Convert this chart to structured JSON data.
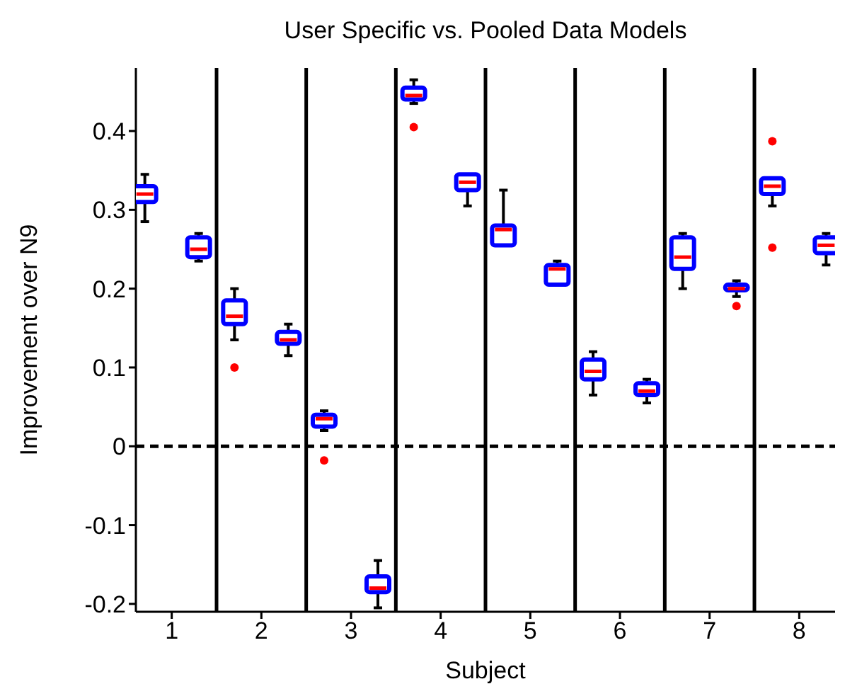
{
  "chart_data": {
    "type": "box",
    "title": "User Specific vs. Pooled Data Models",
    "xlabel": "Subject",
    "ylabel": "Improvement over N9",
    "xlim": [
      0.6,
      8.4
    ],
    "xticks": [
      1,
      2,
      3,
      4,
      5,
      6,
      7,
      8
    ],
    "ylim": [
      -0.21,
      0.48
    ],
    "yticks": [
      {
        "value": -0.2,
        "label": "-0.2"
      },
      {
        "value": -0.1,
        "label": "-0.1"
      },
      0,
      0.1,
      0.2,
      0.3,
      0.4
    ],
    "series": [
      {
        "color": "#0000ff",
        "x": [
          0.7,
          1.7,
          2.7,
          3.7,
          4.7,
          5.7,
          6.7,
          7.7
        ],
        "boxes": [
          {
            "low": 0.285,
            "q1": 0.31,
            "median": 0.32,
            "q3": 0.33,
            "high": 0.345
          },
          {
            "low": 0.135,
            "q1": 0.155,
            "median": 0.165,
            "q3": 0.185,
            "high": 0.2,
            "outliers": [
              0.1
            ]
          },
          {
            "low": 0.02,
            "q1": 0.025,
            "median": 0.035,
            "q3": 0.04,
            "high": 0.045,
            "outliers": [
              -0.018
            ]
          },
          {
            "low": 0.435,
            "q1": 0.44,
            "median": 0.445,
            "q3": 0.455,
            "high": 0.465,
            "outliers": [
              0.405
            ]
          },
          {
            "low": 0.255,
            "q1": 0.255,
            "median": 0.275,
            "q3": 0.28,
            "high": 0.325
          },
          {
            "low": 0.065,
            "q1": 0.085,
            "median": 0.095,
            "q3": 0.11,
            "high": 0.12
          },
          {
            "low": 0.2,
            "q1": 0.225,
            "median": 0.24,
            "q3": 0.265,
            "high": 0.27
          },
          {
            "low": 0.305,
            "q1": 0.32,
            "median": 0.33,
            "q3": 0.34,
            "high": 0.34,
            "outliers": [
              0.387,
              0.252
            ]
          }
        ]
      },
      {
        "color": "#0000ff",
        "x": [
          1.3,
          2.3,
          3.3,
          4.3,
          5.3,
          6.3,
          7.3,
          8.3
        ],
        "boxes": [
          {
            "low": 0.235,
            "q1": 0.24,
            "median": 0.25,
            "q3": 0.265,
            "high": 0.27
          },
          {
            "low": 0.115,
            "q1": 0.13,
            "median": 0.135,
            "q3": 0.145,
            "high": 0.155
          },
          {
            "low": -0.205,
            "q1": -0.185,
            "median": -0.18,
            "q3": -0.165,
            "high": -0.145
          },
          {
            "low": 0.305,
            "q1": 0.325,
            "median": 0.335,
            "q3": 0.345,
            "high": 0.345
          },
          {
            "low": 0.205,
            "q1": 0.205,
            "median": 0.225,
            "q3": 0.23,
            "high": 0.235
          },
          {
            "low": 0.055,
            "q1": 0.065,
            "median": 0.07,
            "q3": 0.08,
            "high": 0.085
          },
          {
            "low": 0.19,
            "q1": 0.198,
            "median": 0.2,
            "q3": 0.205,
            "high": 0.21,
            "outliers": [
              0.178
            ]
          },
          {
            "low": 0.23,
            "q1": 0.245,
            "median": 0.255,
            "q3": 0.265,
            "high": 0.27
          }
        ]
      }
    ],
    "ref_lines": [
      {
        "axis": "x",
        "value": 1.5,
        "color": "#000000",
        "line_style": "solid"
      },
      {
        "axis": "x",
        "value": 2.5,
        "color": "#000000",
        "line_style": "solid"
      },
      {
        "axis": "x",
        "value": 3.5,
        "color": "#000000",
        "line_style": "solid"
      },
      {
        "axis": "x",
        "value": 4.5,
        "color": "#000000",
        "line_style": "solid"
      },
      {
        "axis": "x",
        "value": 5.5,
        "color": "#000000",
        "line_style": "solid"
      },
      {
        "axis": "x",
        "value": 6.5,
        "color": "#000000",
        "line_style": "solid"
      },
      {
        "axis": "x",
        "value": 7.5,
        "color": "#000000",
        "line_style": "solid"
      },
      {
        "axis": "y",
        "value": 0,
        "color": "#000000",
        "line_style": "dashed"
      }
    ],
    "grid": false,
    "legend": false
  }
}
